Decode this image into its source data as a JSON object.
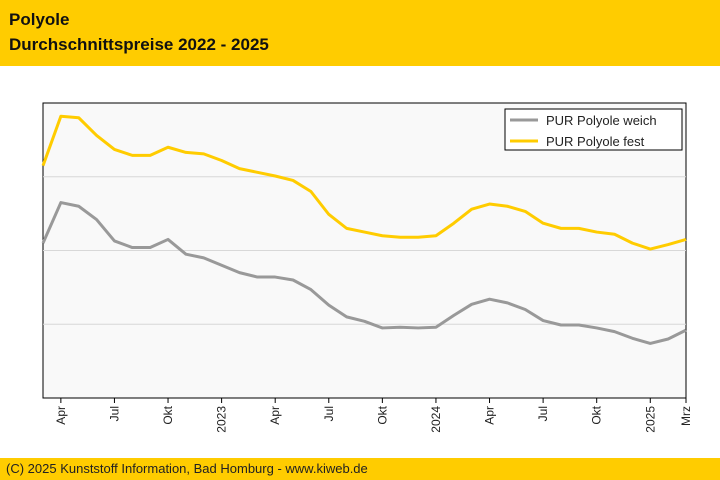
{
  "header": {
    "title_line1": "Polyole",
    "title_line2": "Durchschnittspreise 2022 - 2025"
  },
  "footer": {
    "copyright": "(C) 2025 Kunststoff Information, Bad Homburg - www.kiweb.de"
  },
  "colors": {
    "header_bg": "#ffcc00",
    "series_weich": "#999999",
    "series_fest": "#ffcc00",
    "plot_bg": "#f9f9f9",
    "grid": "#d8d8d8"
  },
  "chart_data": {
    "type": "line",
    "title": "",
    "xlabel": "",
    "ylabel": "",
    "x_ticks": [
      {
        "label": "Apr",
        "x": 1
      },
      {
        "label": "Jul",
        "x": 4
      },
      {
        "label": "Okt",
        "x": 7
      },
      {
        "label": "2023",
        "x": 10
      },
      {
        "label": "Apr",
        "x": 13
      },
      {
        "label": "Jul",
        "x": 16
      },
      {
        "label": "Okt",
        "x": 19
      },
      {
        "label": "2024",
        "x": 22
      },
      {
        "label": "Apr",
        "x": 25
      },
      {
        "label": "Jul",
        "x": 28
      },
      {
        "label": "Okt",
        "x": 31
      },
      {
        "label": "2025",
        "x": 34
      },
      {
        "label": "Mrz",
        "x": 36
      }
    ],
    "x_range": [
      0,
      36
    ],
    "y_range": [
      0,
      4
    ],
    "y_gridlines": [
      1,
      2,
      3
    ],
    "y_tick_labels_shown": false,
    "grid": true,
    "legend_position": "top-right",
    "series": [
      {
        "name": "PUR Polyole weich",
        "color": "#999999",
        "values": [
          2.1,
          2.65,
          2.6,
          2.42,
          2.13,
          2.04,
          2.04,
          2.15,
          1.95,
          1.9,
          1.8,
          1.7,
          1.64,
          1.64,
          1.6,
          1.47,
          1.26,
          1.1,
          1.04,
          0.95,
          0.96,
          0.95,
          0.96,
          1.12,
          1.27,
          1.34,
          1.29,
          1.2,
          1.05,
          0.99,
          0.99,
          0.95,
          0.9,
          0.81,
          0.74,
          0.8,
          0.92
        ]
      },
      {
        "name": "PUR Polyole fest",
        "color": "#ffcc00",
        "values": [
          3.15,
          3.82,
          3.8,
          3.56,
          3.37,
          3.29,
          3.29,
          3.4,
          3.33,
          3.31,
          3.22,
          3.11,
          3.06,
          3.01,
          2.95,
          2.8,
          2.49,
          2.3,
          2.25,
          2.2,
          2.18,
          2.18,
          2.2,
          2.37,
          2.56,
          2.63,
          2.6,
          2.53,
          2.37,
          2.3,
          2.3,
          2.25,
          2.22,
          2.1,
          2.02,
          2.08,
          2.15
        ]
      }
    ]
  }
}
